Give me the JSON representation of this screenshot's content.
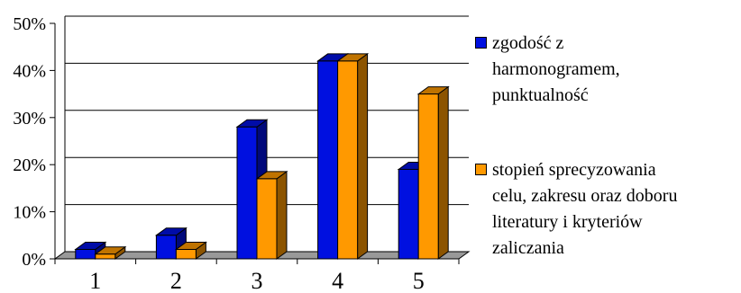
{
  "chart_data": {
    "type": "bar",
    "categories": [
      "1",
      "2",
      "3",
      "4",
      "5"
    ],
    "series": [
      {
        "name": "zgodość z\nharmonogramem,\npunktualność",
        "color": "#0010E0",
        "values": [
          2,
          5,
          28,
          42,
          19
        ]
      },
      {
        "name": "stopień sprecyzowania\ncelu, zakresu oraz doboru\nliteratury i kryteriów\nzaliczania",
        "color": "#FF9900",
        "values": [
          1,
          2,
          17,
          42,
          35
        ]
      }
    ],
    "yticks": [
      "0%",
      "10%",
      "20%",
      "30%",
      "40%",
      "50%"
    ],
    "ylim": [
      0,
      50
    ],
    "grid": true,
    "legend_position": "right",
    "title": "",
    "xlabel": "",
    "ylabel": ""
  }
}
